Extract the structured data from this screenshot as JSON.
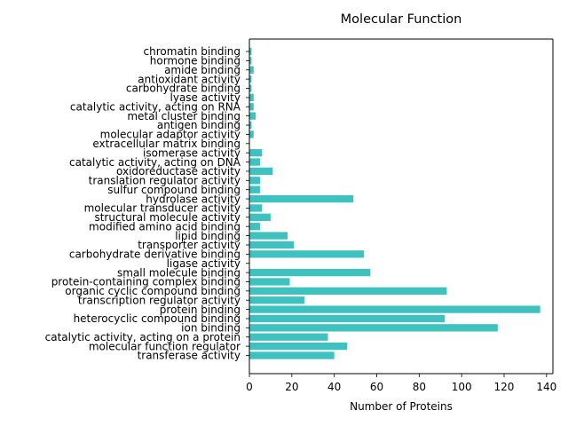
{
  "chart_data": {
    "type": "bar",
    "orientation": "horizontal",
    "title": "Molecular Function",
    "xlabel": "Number of Proteins",
    "ylabel": "",
    "xlim": [
      0,
      143
    ],
    "xticks": [
      0,
      20,
      40,
      60,
      80,
      100,
      120,
      140
    ],
    "grid": false,
    "bar_color": "#3fc1bf",
    "categories": [
      "transferase activity",
      "molecular function regulator",
      "catalytic activity, acting on a protein",
      "ion binding",
      "heterocyclic compound binding",
      "protein binding",
      "transcription regulator activity",
      "organic cyclic compound binding",
      "protein-containing complex binding",
      "small molecule binding",
      "ligase activity",
      "carbohydrate derivative binding",
      "transporter activity",
      "lipid binding",
      "modified amino acid binding",
      "structural molecule activity",
      "molecular transducer activity",
      "hydrolase activity",
      "sulfur compound binding",
      "translation regulator activity",
      "oxidoreductase activity",
      "catalytic activity, acting on DNA",
      "isomerase activity",
      "extracellular matrix binding",
      "molecular adaptor activity",
      "antigen binding",
      "metal cluster binding",
      "catalytic activity, acting on RNA",
      "lyase activity",
      "carbohydrate binding",
      "antioxidant activity",
      "amide binding",
      "hormone binding",
      "chromatin binding"
    ],
    "values": [
      40,
      46,
      37,
      117,
      92,
      137,
      26,
      93,
      19,
      57,
      0,
      54,
      21,
      18,
      5,
      10,
      6,
      49,
      5,
      5,
      11,
      5,
      6,
      0,
      2,
      1,
      3,
      2,
      2,
      1,
      1,
      2,
      1,
      1
    ]
  }
}
